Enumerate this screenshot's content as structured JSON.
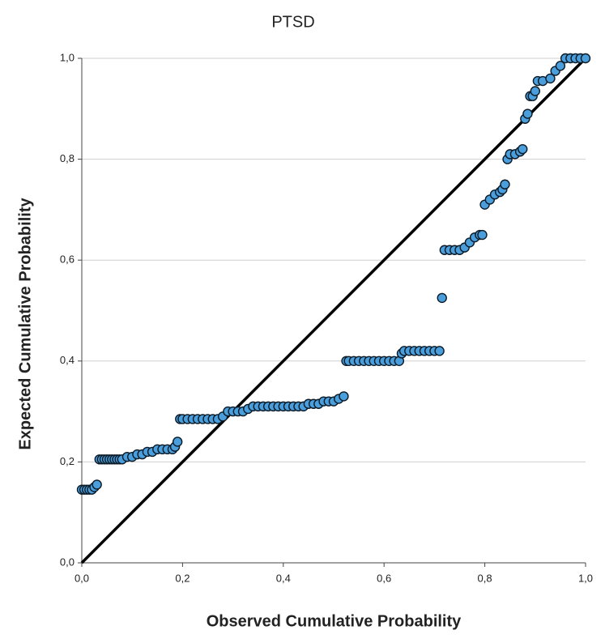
{
  "chart_data": {
    "type": "scatter",
    "title": "PTSD",
    "x_label": "Observed Cumulative Probability",
    "y_label": "Expected Cumulative Probability",
    "x": [
      0,
      0.005,
      0.01,
      0.015,
      0.02,
      0.025,
      0.03,
      0.035,
      0.04,
      0.045,
      0.05,
      0.055,
      0.06,
      0.065,
      0.07,
      0.075,
      0.08,
      0.09,
      0.1,
      0.11,
      0.12,
      0.13,
      0.14,
      0.15,
      0.16,
      0.17,
      0.18,
      0.185,
      0.19,
      0.195,
      0.2,
      0.21,
      0.22,
      0.23,
      0.24,
      0.25,
      0.26,
      0.27,
      0.28,
      0.29,
      0.3,
      0.31,
      0.32,
      0.33,
      0.34,
      0.35,
      0.36,
      0.37,
      0.38,
      0.39,
      0.4,
      0.41,
      0.42,
      0.43,
      0.44,
      0.45,
      0.46,
      0.47,
      0.48,
      0.49,
      0.5,
      0.51,
      0.52,
      0.525,
      0.53,
      0.54,
      0.55,
      0.56,
      0.57,
      0.58,
      0.59,
      0.6,
      0.61,
      0.62,
      0.63,
      0.635,
      0.64,
      0.65,
      0.66,
      0.67,
      0.68,
      0.69,
      0.7,
      0.71,
      0.715,
      0.72,
      0.73,
      0.74,
      0.75,
      0.76,
      0.77,
      0.78,
      0.79,
      0.795,
      0.8,
      0.81,
      0.82,
      0.83,
      0.835,
      0.84,
      0.845,
      0.85,
      0.86,
      0.87,
      0.875,
      0.88,
      0.885,
      0.89,
      0.895,
      0.9,
      0.905,
      0.915,
      0.93,
      0.94,
      0.95,
      0.96,
      0.97,
      0.98,
      0.99,
      1
    ],
    "values": [
      0.145,
      0.145,
      0.145,
      0.145,
      0.145,
      0.15,
      0.155,
      0.205,
      0.205,
      0.205,
      0.205,
      0.205,
      0.205,
      0.205,
      0.205,
      0.205,
      0.205,
      0.21,
      0.21,
      0.215,
      0.215,
      0.22,
      0.22,
      0.225,
      0.225,
      0.225,
      0.225,
      0.23,
      0.24,
      0.285,
      0.285,
      0.285,
      0.285,
      0.285,
      0.285,
      0.285,
      0.285,
      0.285,
      0.29,
      0.3,
      0.3,
      0.3,
      0.3,
      0.305,
      0.31,
      0.31,
      0.31,
      0.31,
      0.31,
      0.31,
      0.31,
      0.31,
      0.31,
      0.31,
      0.31,
      0.315,
      0.315,
      0.315,
      0.32,
      0.32,
      0.32,
      0.325,
      0.33,
      0.4,
      0.4,
      0.4,
      0.4,
      0.4,
      0.4,
      0.4,
      0.4,
      0.4,
      0.4,
      0.4,
      0.4,
      0.415,
      0.42,
      0.42,
      0.42,
      0.42,
      0.42,
      0.42,
      0.42,
      0.42,
      0.525,
      0.62,
      0.62,
      0.62,
      0.62,
      0.625,
      0.635,
      0.645,
      0.65,
      0.65,
      0.71,
      0.72,
      0.73,
      0.735,
      0.74,
      0.75,
      0.8,
      0.81,
      0.81,
      0.815,
      0.82,
      0.88,
      0.89,
      0.925,
      0.925,
      0.935,
      0.955,
      0.955,
      0.96,
      0.975,
      0.985,
      1,
      1,
      1,
      1,
      1
    ],
    "color": "#4a9edb",
    "xlim": [
      0,
      1
    ],
    "ylim": [
      0,
      1
    ],
    "xticks": [
      {
        "value": 0,
        "label": "0,0"
      },
      {
        "value": 0.2,
        "label": "0,2"
      },
      {
        "value": 0.4,
        "label": "0,4"
      },
      {
        "value": 0.6,
        "label": "0,6"
      },
      {
        "value": 0.8,
        "label": "0,8"
      },
      {
        "value": 1,
        "label": "1,0"
      }
    ],
    "yticks": [
      {
        "value": 0,
        "label": "0,0"
      },
      {
        "value": 0.2,
        "label": "0,2"
      },
      {
        "value": 0.4,
        "label": "0,4"
      },
      {
        "value": 0.6,
        "label": "0,6"
      },
      {
        "value": 0.8,
        "label": "0,8"
      },
      {
        "value": 1,
        "label": "1,0"
      }
    ],
    "grid": true
  }
}
